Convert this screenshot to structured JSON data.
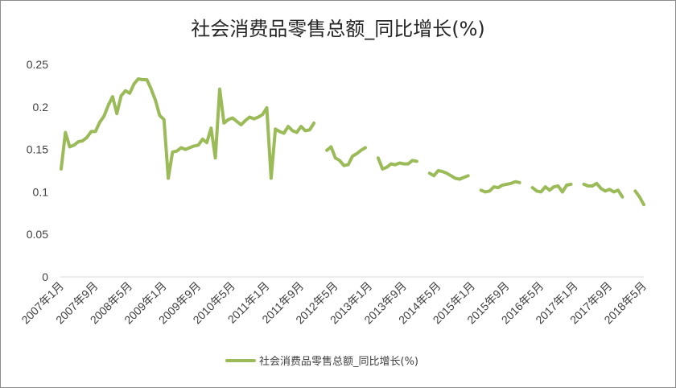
{
  "chart_data": {
    "type": "line",
    "title": "社会消费品零售总额_同比增长(%)",
    "xlabel": "",
    "ylabel": "",
    "ylim": [
      0,
      0.25
    ],
    "yticks": [
      "0",
      "0.05",
      "0.1",
      "0.15",
      "0.2",
      "0.25"
    ],
    "xtick_labels": [
      "2007年1月",
      "2007年9月",
      "2008年5月",
      "2009年1月",
      "2009年9月",
      "2010年5月",
      "2011年1月",
      "2011年9月",
      "2012年5月",
      "2013年1月",
      "2013年9月",
      "2014年5月",
      "2015年1月",
      "2015年9月",
      "2016年5月",
      "2017年1月",
      "2017年9月",
      "2018年5月"
    ],
    "grid": false,
    "legend_position": "bottom",
    "line_color": "#9bbb59",
    "series": [
      {
        "name": "社会消费品零售总额_同比增长(%)",
        "segments": [
          {
            "x": [
              "2007-01",
              "2007-02",
              "2007-03",
              "2007-04",
              "2007-05",
              "2007-06",
              "2007-07",
              "2007-08",
              "2007-09",
              "2007-10",
              "2007-11",
              "2007-12",
              "2008-01",
              "2008-02",
              "2008-03",
              "2008-04",
              "2008-05",
              "2008-06",
              "2008-07",
              "2008-08",
              "2008-09",
              "2008-10",
              "2008-11",
              "2008-12",
              "2009-01",
              "2009-02",
              "2009-03",
              "2009-04",
              "2009-05",
              "2009-06",
              "2009-07",
              "2009-08",
              "2009-09",
              "2009-10",
              "2009-11",
              "2009-12",
              "2010-01",
              "2010-02",
              "2010-03",
              "2010-04",
              "2010-05",
              "2010-06",
              "2010-07",
              "2010-08",
              "2010-09",
              "2010-10",
              "2010-11",
              "2010-12",
              "2011-01",
              "2011-02",
              "2011-03",
              "2011-04",
              "2011-05",
              "2011-06",
              "2011-07",
              "2011-08",
              "2011-09",
              "2011-10",
              "2011-11",
              "2011-12"
            ],
            "y": [
              0.127,
              0.17,
              0.153,
              0.155,
              0.159,
              0.16,
              0.164,
              0.171,
              0.171,
              0.182,
              0.189,
              0.202,
              0.212,
              0.192,
              0.213,
              0.219,
              0.216,
              0.227,
              0.233,
              0.232,
              0.232,
              0.221,
              0.208,
              0.19,
              0.185,
              0.116,
              0.147,
              0.148,
              0.152,
              0.15,
              0.152,
              0.154,
              0.155,
              0.162,
              0.158,
              0.175,
              0.14,
              0.221,
              0.181,
              0.185,
              0.187,
              0.183,
              0.179,
              0.184,
              0.188,
              0.186,
              0.188,
              0.191,
              0.199,
              0.116,
              0.174,
              0.171,
              0.169,
              0.177,
              0.172,
              0.17,
              0.177,
              0.172,
              0.173,
              0.181
            ]
          },
          {
            "x": [
              "2012-03",
              "2012-04",
              "2012-05",
              "2012-06",
              "2012-07",
              "2012-08",
              "2012-09",
              "2012-10",
              "2012-11",
              "2012-12"
            ],
            "y": [
              0.149,
              0.153,
              0.14,
              0.137,
              0.131,
              0.132,
              0.142,
              0.145,
              0.149,
              0.152
            ]
          },
          {
            "x": [
              "2013-03",
              "2013-04",
              "2013-05",
              "2013-06",
              "2013-07",
              "2013-08",
              "2013-09",
              "2013-10",
              "2013-11",
              "2013-12"
            ],
            "y": [
              0.14,
              0.127,
              0.129,
              0.133,
              0.132,
              0.134,
              0.133,
              0.133,
              0.137,
              0.136
            ]
          },
          {
            "x": [
              "2014-03",
              "2014-04",
              "2014-05",
              "2014-06",
              "2014-07",
              "2014-08",
              "2014-09",
              "2014-10",
              "2014-11",
              "2014-12"
            ],
            "y": [
              0.122,
              0.119,
              0.125,
              0.124,
              0.122,
              0.119,
              0.116,
              0.115,
              0.117,
              0.119
            ]
          },
          {
            "x": [
              "2015-03",
              "2015-04",
              "2015-05",
              "2015-06",
              "2015-07",
              "2015-08",
              "2015-09",
              "2015-10",
              "2015-11",
              "2015-12"
            ],
            "y": [
              0.102,
              0.1,
              0.101,
              0.106,
              0.105,
              0.108,
              0.109,
              0.11,
              0.112,
              0.111
            ]
          },
          {
            "x": [
              "2016-03",
              "2016-04",
              "2016-05",
              "2016-06",
              "2016-07",
              "2016-08",
              "2016-09",
              "2016-10",
              "2016-11",
              "2016-12"
            ],
            "y": [
              0.105,
              0.101,
              0.1,
              0.106,
              0.102,
              0.106,
              0.107,
              0.1,
              0.108,
              0.109
            ]
          },
          {
            "x": [
              "2017-03",
              "2017-04",
              "2017-05",
              "2017-06",
              "2017-07",
              "2017-08",
              "2017-09",
              "2017-10",
              "2017-11",
              "2017-12"
            ],
            "y": [
              0.109,
              0.107,
              0.107,
              0.11,
              0.104,
              0.101,
              0.103,
              0.1,
              0.102,
              0.094
            ]
          },
          {
            "x": [
              "2018-03",
              "2018-04",
              "2018-05"
            ],
            "y": [
              0.101,
              0.094,
              0.085
            ]
          }
        ]
      }
    ]
  }
}
